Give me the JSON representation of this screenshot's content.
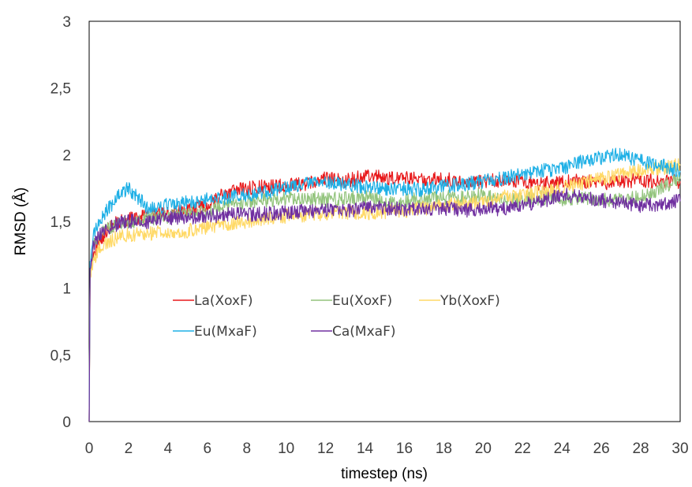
{
  "chart_data": {
    "type": "line",
    "title": "",
    "xlabel": "timestep (ns)",
    "ylabel": "RMSD (Å)",
    "xlim": [
      0,
      30
    ],
    "ylim": [
      0,
      3
    ],
    "x_ticks": [
      "0",
      "2",
      "4",
      "6",
      "8",
      "10",
      "12",
      "14",
      "16",
      "18",
      "20",
      "22",
      "24",
      "26",
      "28",
      "30"
    ],
    "y_ticks": [
      "0",
      "0,5",
      "1",
      "1,5",
      "2",
      "2,5",
      "3"
    ],
    "grid": false,
    "legend_position": "center-left",
    "x": [
      0,
      0.05,
      0.2,
      0.5,
      1,
      1.5,
      2,
      3,
      4,
      5,
      6,
      7,
      8,
      9,
      10,
      11,
      12,
      13,
      14,
      15,
      16,
      17,
      18,
      19,
      20,
      21,
      22,
      23,
      24,
      25,
      26,
      27,
      28,
      29,
      30
    ],
    "series": [
      {
        "name": "La(XoxF)",
        "color": "#e8191b",
        "values": [
          0.0,
          1.1,
          1.25,
          1.35,
          1.45,
          1.5,
          1.52,
          1.54,
          1.56,
          1.58,
          1.62,
          1.72,
          1.75,
          1.76,
          1.77,
          1.78,
          1.82,
          1.8,
          1.84,
          1.83,
          1.82,
          1.81,
          1.82,
          1.79,
          1.8,
          1.81,
          1.8,
          1.78,
          1.8,
          1.8,
          1.79,
          1.8,
          1.81,
          1.8,
          1.8
        ]
      },
      {
        "name": "Eu(XoxF)",
        "color": "#93c47d",
        "values": [
          0.0,
          1.12,
          1.3,
          1.4,
          1.45,
          1.48,
          1.5,
          1.52,
          1.54,
          1.56,
          1.58,
          1.62,
          1.65,
          1.66,
          1.67,
          1.68,
          1.66,
          1.67,
          1.68,
          1.65,
          1.66,
          1.67,
          1.68,
          1.68,
          1.7,
          1.65,
          1.66,
          1.68,
          1.67,
          1.68,
          1.67,
          1.66,
          1.68,
          1.75,
          1.82
        ]
      },
      {
        "name": "Yb(XoxF)",
        "color": "#ffd966",
        "values": [
          0.0,
          1.1,
          1.2,
          1.3,
          1.35,
          1.38,
          1.4,
          1.41,
          1.42,
          1.43,
          1.45,
          1.48,
          1.5,
          1.52,
          1.54,
          1.55,
          1.56,
          1.57,
          1.56,
          1.57,
          1.58,
          1.6,
          1.62,
          1.63,
          1.65,
          1.68,
          1.7,
          1.72,
          1.75,
          1.78,
          1.82,
          1.85,
          1.88,
          1.9,
          1.92
        ]
      },
      {
        "name": "Eu(MxaF)",
        "color": "#1fb0e6",
        "values": [
          0.0,
          1.2,
          1.4,
          1.5,
          1.6,
          1.7,
          1.75,
          1.6,
          1.62,
          1.64,
          1.66,
          1.68,
          1.7,
          1.72,
          1.75,
          1.78,
          1.8,
          1.78,
          1.76,
          1.74,
          1.75,
          1.74,
          1.76,
          1.78,
          1.8,
          1.82,
          1.86,
          1.88,
          1.9,
          1.95,
          1.98,
          2.0,
          1.95,
          1.92,
          1.88
        ]
      },
      {
        "name": "Ca(MxaF)",
        "color": "#7030a0",
        "values": [
          0.0,
          1.15,
          1.3,
          1.4,
          1.45,
          1.48,
          1.5,
          1.5,
          1.52,
          1.53,
          1.54,
          1.55,
          1.55,
          1.56,
          1.57,
          1.58,
          1.58,
          1.58,
          1.6,
          1.6,
          1.59,
          1.6,
          1.6,
          1.58,
          1.6,
          1.59,
          1.62,
          1.65,
          1.7,
          1.68,
          1.66,
          1.64,
          1.62,
          1.63,
          1.65
        ]
      }
    ]
  }
}
